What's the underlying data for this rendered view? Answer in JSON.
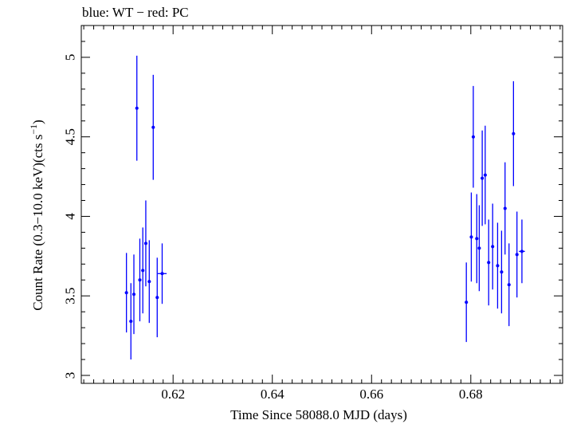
{
  "chart_data": {
    "type": "scatter",
    "title": "blue: WT − red: PC",
    "xlabel": "Time Since 58088.0 MJD (days)",
    "ylabel_main": "Count Rate (0.3−10.0 keV)(cts s",
    "ylabel_sup": "−1",
    "ylabel_end": ")",
    "xlim": [
      0.6015,
      0.6985
    ],
    "ylim": [
      2.95,
      5.2
    ],
    "xticks": [
      0.62,
      0.64,
      0.66,
      0.68
    ],
    "xtick_labels": [
      "0.62",
      "0.64",
      "0.66",
      "0.68"
    ],
    "yticks": [
      3,
      3.5,
      4,
      4.5,
      5
    ],
    "ytick_labels": [
      "3",
      "3.5",
      "4",
      "4.5",
      "5"
    ],
    "grid": false,
    "series": [
      {
        "name": "WT",
        "color": "#0000ff",
        "points": [
          {
            "x": 0.6106,
            "y": 3.52,
            "yerr": 0.25,
            "xerr": 0.0003
          },
          {
            "x": 0.6115,
            "y": 3.34,
            "yerr": 0.24,
            "xerr": 0.0003
          },
          {
            "x": 0.6121,
            "y": 3.51,
            "yerr": 0.25,
            "xerr": 0.0003
          },
          {
            "x": 0.6127,
            "y": 4.68,
            "yerr": 0.33,
            "xerr": 0.0003
          },
          {
            "x": 0.6133,
            "y": 3.6,
            "yerr": 0.26,
            "xerr": 0.0003
          },
          {
            "x": 0.6139,
            "y": 3.66,
            "yerr": 0.27,
            "xerr": 0.0003
          },
          {
            "x": 0.6145,
            "y": 3.83,
            "yerr": 0.27,
            "xerr": 0.0003
          },
          {
            "x": 0.6152,
            "y": 3.59,
            "yerr": 0.26,
            "xerr": 0.0003
          },
          {
            "x": 0.616,
            "y": 4.56,
            "yerr": 0.33,
            "xerr": 0.0003
          },
          {
            "x": 0.6168,
            "y": 3.49,
            "yerr": 0.25,
            "xerr": 0.0003
          },
          {
            "x": 0.6178,
            "y": 3.64,
            "yerr": 0.19,
            "xerr": 0.0009
          },
          {
            "x": 0.6791,
            "y": 3.46,
            "yerr": 0.25,
            "xerr": 0.0003
          },
          {
            "x": 0.6801,
            "y": 3.87,
            "yerr": 0.28,
            "xerr": 0.0003
          },
          {
            "x": 0.6805,
            "y": 4.5,
            "yerr": 0.32,
            "xerr": 0.0003
          },
          {
            "x": 0.6812,
            "y": 3.86,
            "yerr": 0.28,
            "xerr": 0.0003
          },
          {
            "x": 0.6817,
            "y": 3.8,
            "yerr": 0.27,
            "xerr": 0.0003
          },
          {
            "x": 0.6823,
            "y": 4.24,
            "yerr": 0.3,
            "xerr": 0.0003
          },
          {
            "x": 0.6829,
            "y": 4.26,
            "yerr": 0.31,
            "xerr": 0.0003
          },
          {
            "x": 0.6836,
            "y": 3.71,
            "yerr": 0.27,
            "xerr": 0.0003
          },
          {
            "x": 0.6844,
            "y": 3.81,
            "yerr": 0.27,
            "xerr": 0.0003
          },
          {
            "x": 0.6854,
            "y": 3.69,
            "yerr": 0.27,
            "xerr": 0.0003
          },
          {
            "x": 0.6862,
            "y": 3.65,
            "yerr": 0.26,
            "xerr": 0.0003
          },
          {
            "x": 0.6869,
            "y": 4.05,
            "yerr": 0.29,
            "xerr": 0.0003
          },
          {
            "x": 0.6877,
            "y": 3.57,
            "yerr": 0.26,
            "xerr": 0.0003
          },
          {
            "x": 0.6886,
            "y": 4.52,
            "yerr": 0.33,
            "xerr": 0.0003
          },
          {
            "x": 0.6893,
            "y": 3.76,
            "yerr": 0.27,
            "xerr": 0.0003
          },
          {
            "x": 0.6903,
            "y": 3.78,
            "yerr": 0.2,
            "xerr": 0.0006
          }
        ]
      }
    ]
  }
}
